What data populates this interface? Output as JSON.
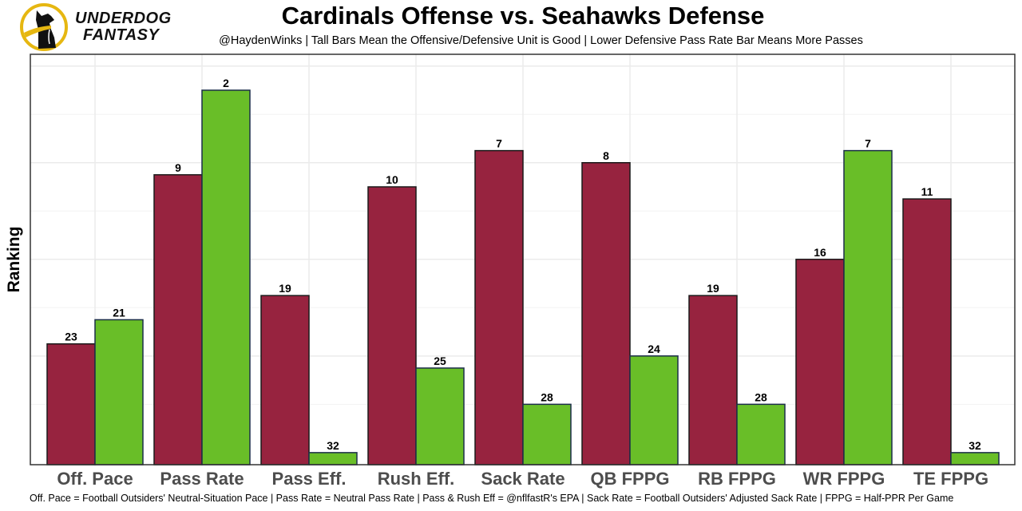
{
  "brand": {
    "line1": "UNDERDOG",
    "line2": "FANTASY",
    "logo_icon": "underdog-dog-logo-icon",
    "logo_color": "#e6b711"
  },
  "chart_data": {
    "type": "bar",
    "title": "Cardinals Offense vs. Seahawks Defense",
    "subtitle": "@HaydenWinks | Tall Bars Mean the Offensive/Defensive Unit is Good | Lower Defensive Pass Rate Bar Means More Passes",
    "xlabel": "",
    "ylabel": "Ranking",
    "caption": "Off. Pace = Football Outsiders' Neutral-Situation Pace | Pass Rate = Neutral Pass Rate | Pass & Rush Eff = @nflfastR's EPA | Sack Rate = Football Outsiders' Adjusted Sack Rate | FPPG = Half-PPR Per Game",
    "categories": [
      "Off. Pace",
      "Pass Rate",
      "Pass Eff.",
      "Rush Eff.",
      "Sack Rate",
      "QB FPPG",
      "RB FPPG",
      "WR FPPG",
      "TE FPPG"
    ],
    "series": [
      {
        "name": "Cardinals Offense",
        "color": "#97233f",
        "values": [
          23,
          9,
          19,
          10,
          7,
          8,
          19,
          16,
          11
        ]
      },
      {
        "name": "Seahawks Defense",
        "color": "#69be28",
        "values": [
          21,
          2,
          32,
          25,
          28,
          24,
          28,
          7,
          32
        ]
      }
    ],
    "value_meaning": "rank (1 = best); bar height = 33 - rank",
    "rank_range": [
      1,
      32
    ],
    "y_tick_labels_shown": false,
    "grid": true,
    "legend": "none"
  }
}
